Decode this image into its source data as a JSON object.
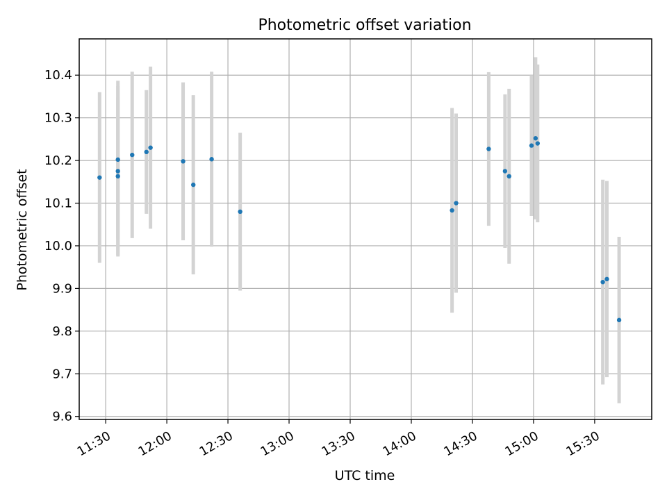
{
  "chart_data": {
    "type": "scatter",
    "title": "Photometric offset variation",
    "xlabel": "UTC time",
    "ylabel": "Photometric offset",
    "x_ticks": [
      "11:30",
      "12:00",
      "12:30",
      "13:00",
      "13:30",
      "14:00",
      "14:30",
      "15:00",
      "15:30"
    ],
    "x_tick_minutes": [
      690,
      720,
      750,
      780,
      810,
      840,
      870,
      900,
      930
    ],
    "xlim_minutes": [
      677,
      958
    ],
    "y_ticks": [
      9.6,
      9.7,
      9.8,
      9.9,
      10.0,
      10.1,
      10.2,
      10.3,
      10.4
    ],
    "ylim": [
      9.593,
      10.485
    ],
    "grid": true,
    "colors": {
      "points": "#1f77b4",
      "errorbars": "#d3d3d3"
    },
    "series": [
      {
        "points": [
          {
            "t": "11:27",
            "y": 10.16,
            "err": 0.2
          },
          {
            "t": "11:36",
            "y": 10.163,
            "err": 0.185
          },
          {
            "t": "11:36",
            "y": 10.175,
            "err": 0.2
          },
          {
            "t": "11:36",
            "y": 10.202,
            "err": 0.185
          },
          {
            "t": "11:43",
            "y": 10.213,
            "err": 0.195
          },
          {
            "t": "11:50",
            "y": 10.22,
            "err": 0.145
          },
          {
            "t": "11:52",
            "y": 10.23,
            "err": 0.19
          },
          {
            "t": "12:08",
            "y": 10.198,
            "err": 0.185
          },
          {
            "t": "12:13",
            "y": 10.143,
            "err": 0.21
          },
          {
            "t": "12:22",
            "y": 10.203,
            "err": 0.205
          },
          {
            "t": "12:36",
            "y": 10.08,
            "err": 0.185
          },
          {
            "t": "14:20",
            "y": 10.083,
            "err": 0.24
          },
          {
            "t": "14:22",
            "y": 10.1,
            "err": 0.21
          },
          {
            "t": "14:38",
            "y": 10.227,
            "err": 0.18
          },
          {
            "t": "14:46",
            "y": 10.175,
            "err": 0.18
          },
          {
            "t": "14:48",
            "y": 10.163,
            "err": 0.205
          },
          {
            "t": "14:59",
            "y": 10.235,
            "err": 0.165
          },
          {
            "t": "15:01",
            "y": 10.252,
            "err": 0.19
          },
          {
            "t": "15:02",
            "y": 10.24,
            "err": 0.185
          },
          {
            "t": "15:34",
            "y": 9.915,
            "err": 0.24
          },
          {
            "t": "15:36",
            "y": 9.922,
            "err": 0.23
          },
          {
            "t": "15:42",
            "y": 9.826,
            "err": 0.195
          }
        ]
      }
    ]
  }
}
